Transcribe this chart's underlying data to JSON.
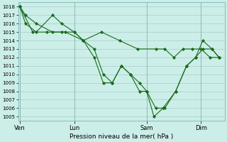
{
  "bg_color": "#cceee8",
  "grid_color": "#aacccc",
  "line_color": "#1a6b1a",
  "marker_color": "#1a6b1a",
  "xlabel": "Pression niveau de la mer( hPa )",
  "ylim_min": 1004.5,
  "ylim_max": 1018.5,
  "xtick_labels": [
    "Ven",
    "Lun",
    "Sam",
    "Dim"
  ],
  "xtick_positions": [
    0.0,
    3.0,
    7.0,
    10.0
  ],
  "xlim_min": -0.1,
  "xlim_max": 11.3,
  "series1_x": [
    0.0,
    0.3,
    0.9,
    1.8,
    2.3,
    3.0,
    3.5,
    4.1,
    4.6,
    5.1,
    5.6,
    6.1,
    6.6,
    7.0,
    7.5,
    8.0,
    8.6,
    9.2,
    9.7,
    10.1,
    10.6,
    11.0
  ],
  "series1_y": [
    1018,
    1017,
    1016,
    1015,
    1015,
    1015,
    1014,
    1013,
    1010,
    1009,
    1011,
    1010,
    1009,
    1008,
    1006,
    1006,
    1008,
    1011,
    1012,
    1013,
    1013,
    1012
  ],
  "series2_x": [
    0.0,
    0.3,
    0.9,
    1.8,
    2.3,
    3.0,
    3.5,
    4.1,
    4.6,
    5.1,
    5.6,
    6.1,
    6.6,
    7.0,
    7.4,
    7.9,
    8.6,
    9.2,
    9.7,
    10.1,
    10.6,
    11.0
  ],
  "series2_y": [
    1018,
    1016,
    1015,
    1017,
    1016,
    1015,
    1014,
    1012,
    1009,
    1009,
    1011,
    1010,
    1008,
    1008,
    1005,
    1006,
    1008,
    1011,
    1012,
    1014,
    1013,
    1012
  ],
  "series3_x": [
    0.0,
    0.7,
    1.5,
    2.5,
    3.5,
    4.5,
    5.5,
    6.5,
    7.5,
    8.0,
    8.5,
    9.0,
    9.5,
    10.0,
    10.5,
    11.0
  ],
  "series3_y": [
    1018,
    1015,
    1015,
    1015,
    1014,
    1015,
    1014,
    1013,
    1013,
    1013,
    1012,
    1013,
    1013,
    1013,
    1012,
    1012
  ],
  "yticks": [
    1005,
    1006,
    1007,
    1008,
    1009,
    1010,
    1011,
    1012,
    1013,
    1014,
    1015,
    1016,
    1017,
    1018
  ]
}
